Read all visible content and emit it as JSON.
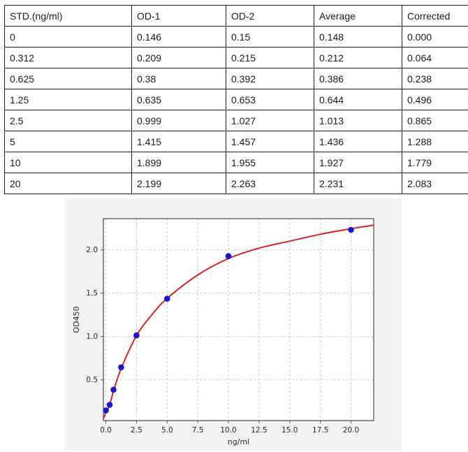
{
  "table": {
    "headers": [
      "STD.(ng/ml)",
      "OD-1",
      "OD-2",
      "Average",
      "Corrected"
    ],
    "rows": [
      [
        "0",
        "0.146",
        "0.15",
        "0.148",
        "0.000"
      ],
      [
        "0.312",
        "0.209",
        "0.215",
        "0.212",
        "0.064"
      ],
      [
        "0.625",
        "0.38",
        "0.392",
        "0.386",
        "0.238"
      ],
      [
        "1.25",
        "0.635",
        "0.653",
        "0.644",
        "0.496"
      ],
      [
        "2.5",
        "0.999",
        "1.027",
        "1.013",
        "0.865"
      ],
      [
        "5",
        "1.415",
        "1.457",
        "1.436",
        "1.288"
      ],
      [
        "10",
        "1.899",
        "1.955",
        "1.927",
        "1.779"
      ],
      [
        "20",
        "2.199",
        "2.263",
        "2.231",
        "2.083"
      ]
    ]
  },
  "chart_data": {
    "type": "scatter",
    "title": "",
    "xlabel": "ng/ml",
    "ylabel": "OD450",
    "x": [
      0,
      0.312,
      0.625,
      1.25,
      2.5,
      5,
      10,
      20
    ],
    "y": [
      0.148,
      0.212,
      0.386,
      0.644,
      1.013,
      1.436,
      1.927,
      2.231
    ],
    "series": [
      {
        "name": "average-od-points",
        "style": "points",
        "x": [
          0,
          0.312,
          0.625,
          1.25,
          2.5,
          5,
          10,
          20
        ],
        "y": [
          0.148,
          0.212,
          0.386,
          0.644,
          1.013,
          1.436,
          1.927,
          2.231
        ]
      },
      {
        "name": "fitted-curve",
        "style": "line",
        "x": [
          -0.2,
          0,
          0.312,
          0.625,
          1.25,
          2.5,
          3.75,
          5,
          7.5,
          10,
          12.5,
          15,
          17.5,
          20,
          21.85
        ],
        "y": [
          0.05,
          0.12,
          0.21,
          0.37,
          0.63,
          1.01,
          1.25,
          1.44,
          1.71,
          1.9,
          2.02,
          2.1,
          2.18,
          2.245,
          2.285
        ]
      }
    ],
    "xticks": [
      0,
      2.5,
      5,
      7.5,
      10,
      12.5,
      15,
      17.5,
      20
    ],
    "xtick_labels": [
      "0.0",
      "2.5",
      "5.0",
      "7.5",
      "10.0",
      "12.5",
      "15.0",
      "17.5",
      "20.0"
    ],
    "yticks": [
      0.5,
      1.0,
      1.5,
      2.0
    ],
    "ytick_labels": [
      "0.5",
      "1.0",
      "1.5",
      "2.0"
    ],
    "xlim": [
      -0.2,
      21.85
    ],
    "ylim": [
      0.03,
      2.36
    ],
    "grid": true,
    "grid_style": "dashed",
    "legend_position": "none",
    "colors": {
      "curve": "#d32525",
      "points": "#1717c9",
      "panel_bg": "#f2f2f2",
      "plot_bg": "#ffffff",
      "grid": "#c9c9c9",
      "axis": "#555555",
      "tick_text": "#262626",
      "table_border": "#1b1b1b"
    }
  }
}
